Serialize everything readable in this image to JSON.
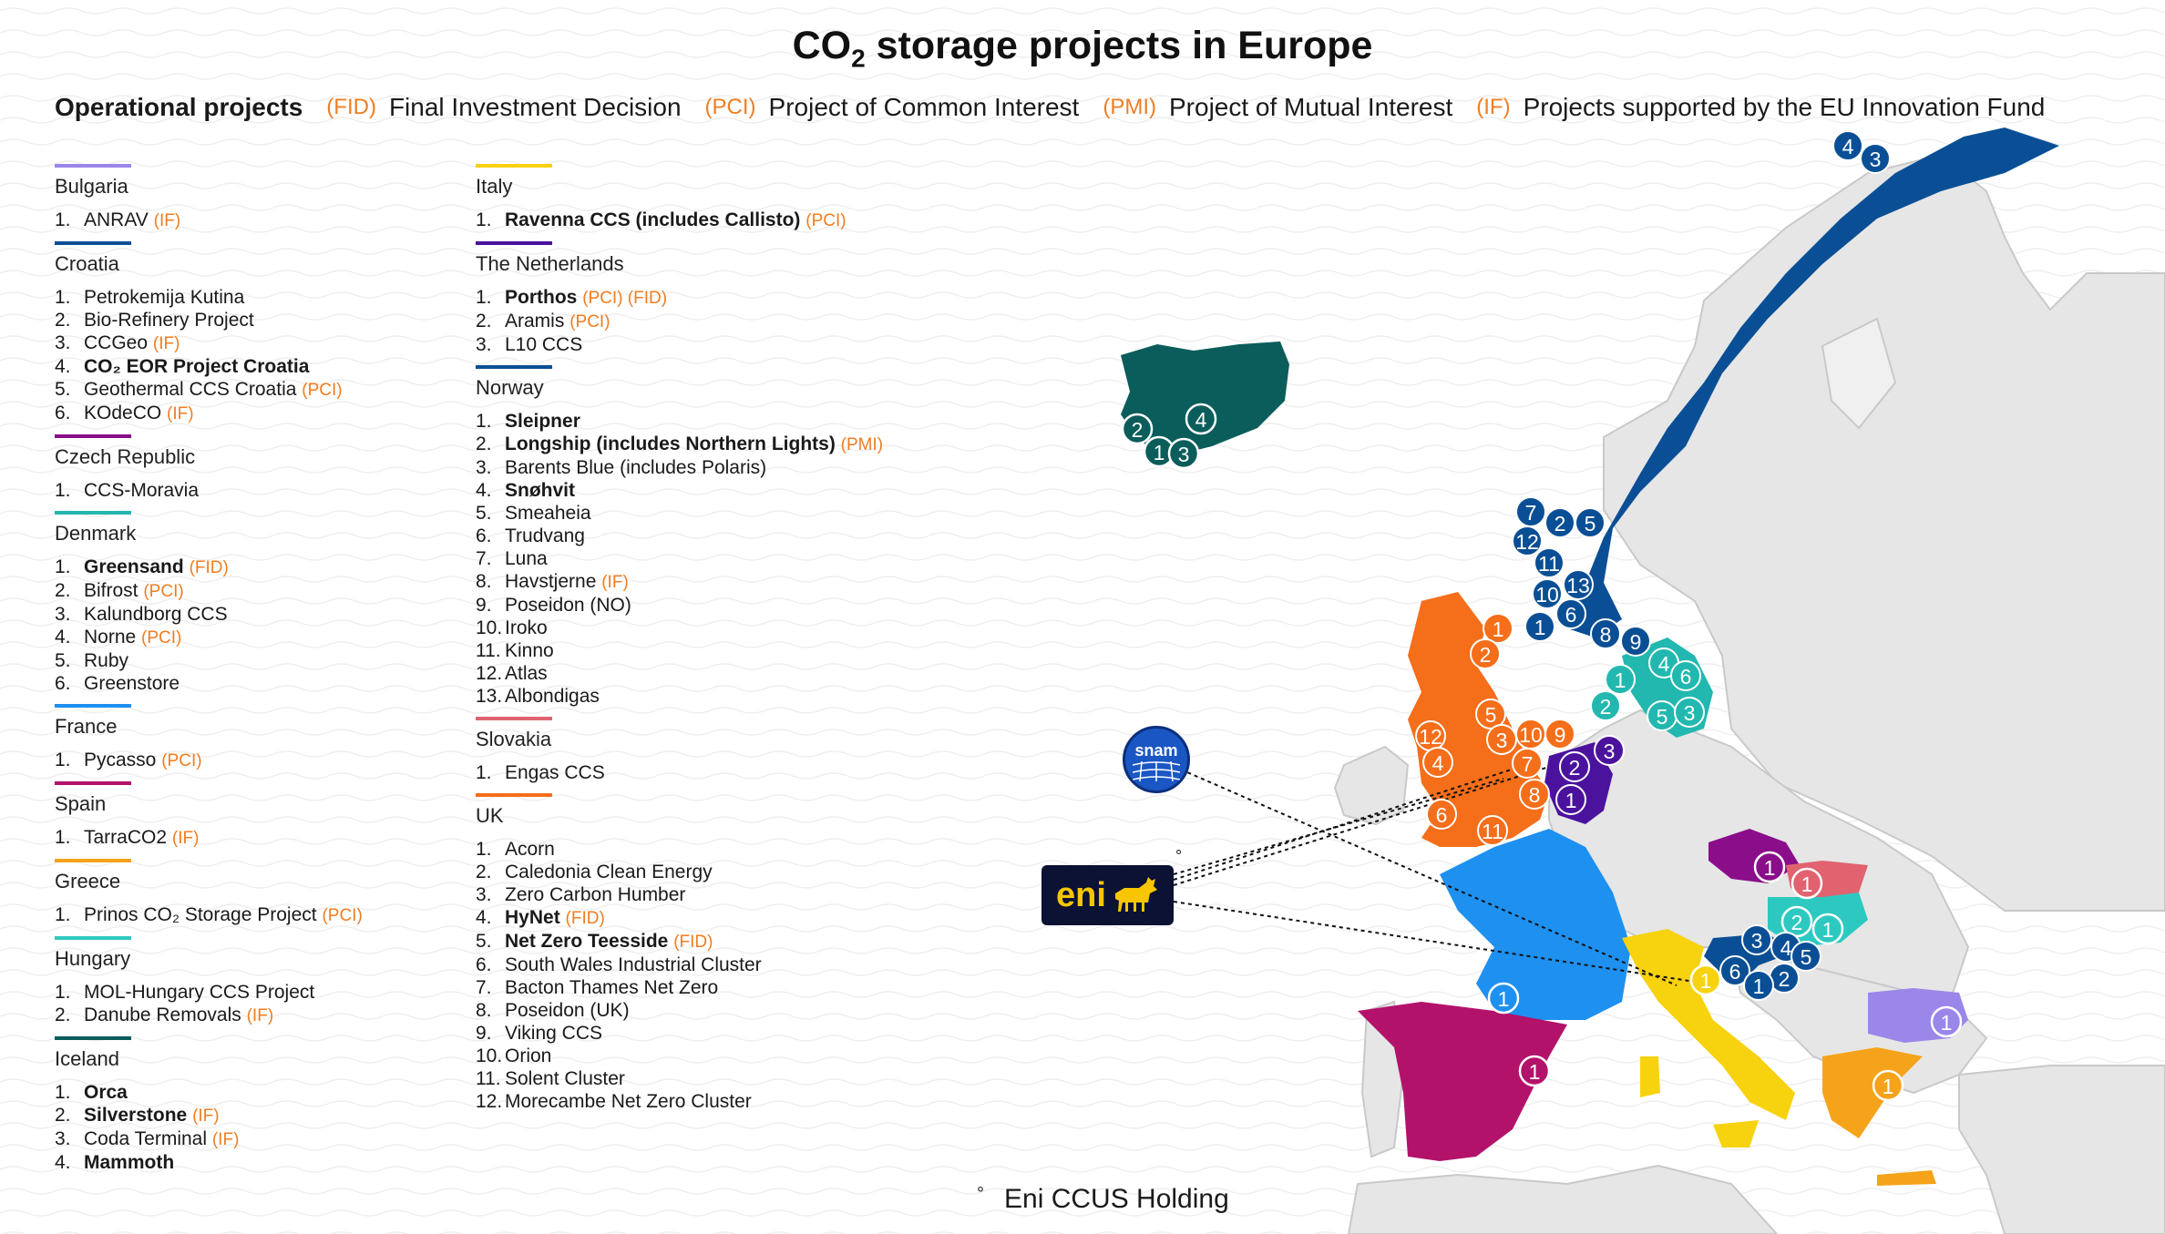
{
  "title": {
    "main": "CO",
    "sub": "2",
    "rest": " storage projects in Europe"
  },
  "legend": {
    "operational": "Operational projects",
    "fid_tag": "(FID)",
    "fid_desc": "Final Investment Decision",
    "pci_tag": "(PCI)",
    "pci_desc": "Project of Common Interest",
    "pmi_tag": "(PMI)",
    "pmi_desc": "Project of Mutual Interest",
    "if_tag": "(IF)",
    "if_desc": "Projects supported by the EU Innovation Fund"
  },
  "colors": {
    "bulgaria": "#9b87ea",
    "croatia": "#0a4f95",
    "czech": "#8a0e8a",
    "denmark": "#22b8b0",
    "france": "#1e90f0",
    "spain": "#b3126b",
    "greece": "#f5a31a",
    "hungary": "#2dc9c1",
    "iceland": "#0a5d5a",
    "italy": "#f7d20f",
    "netherlands": "#4b139d",
    "norway": "#0a4f95",
    "slovakia": "#e0636f",
    "uk": "#f56e1a",
    "tag": "#f07d21"
  },
  "sections": {
    "bulgaria": {
      "name": "Bulgaria",
      "items": [
        {
          "num": "1.",
          "name": "ANRAV",
          "tags": "(IF)",
          "bold": false
        }
      ]
    },
    "croatia": {
      "name": "Croatia",
      "items": [
        {
          "num": "1.",
          "name": "Petrokemija Kutina",
          "tags": "",
          "bold": false
        },
        {
          "num": "2.",
          "name": "Bio-Refinery Project",
          "tags": "",
          "bold": false
        },
        {
          "num": "3.",
          "name": "CCGeo",
          "tags": "(IF)",
          "bold": false
        },
        {
          "num": "4.",
          "name": "CO₂ EOR Project Croatia",
          "tags": "",
          "bold": true
        },
        {
          "num": "5.",
          "name": "Geothermal CCS Croatia",
          "tags": "(PCI)",
          "bold": false
        },
        {
          "num": "6.",
          "name": "KOdeCO",
          "tags": "(IF)",
          "bold": false
        }
      ]
    },
    "czech": {
      "name": "Czech Republic",
      "items": [
        {
          "num": "1.",
          "name": "CCS-Moravia",
          "tags": "",
          "bold": false
        }
      ]
    },
    "denmark": {
      "name": "Denmark",
      "items": [
        {
          "num": "1.",
          "name": "Greensand",
          "tags": "(FID)",
          "bold": true
        },
        {
          "num": "2.",
          "name": "Bifrost",
          "tags": "(PCI)",
          "bold": false
        },
        {
          "num": "3.",
          "name": "Kalundborg CCS",
          "tags": "",
          "bold": false
        },
        {
          "num": "4.",
          "name": "Norne",
          "tags": "(PCI)",
          "bold": false
        },
        {
          "num": "5.",
          "name": "Ruby",
          "tags": "",
          "bold": false
        },
        {
          "num": "6.",
          "name": "Greenstore",
          "tags": "",
          "bold": false
        }
      ]
    },
    "france": {
      "name": "France",
      "items": [
        {
          "num": "1.",
          "name": "Pycasso",
          "tags": "(PCI)",
          "bold": false
        }
      ]
    },
    "spain": {
      "name": "Spain",
      "items": [
        {
          "num": "1.",
          "name": "TarraCO2",
          "tags": "(IF)",
          "bold": false
        }
      ]
    },
    "greece": {
      "name": "Greece",
      "items": [
        {
          "num": "1.",
          "name": "Prinos CO₂ Storage Project",
          "tags": "(PCI)",
          "bold": false
        }
      ]
    },
    "hungary": {
      "name": "Hungary",
      "items": [
        {
          "num": "1.",
          "name": "MOL-Hungary CCS Project",
          "tags": "",
          "bold": false
        },
        {
          "num": "2.",
          "name": "Danube Removals",
          "tags": "(IF)",
          "bold": false
        }
      ]
    },
    "iceland": {
      "name": "Iceland",
      "items": [
        {
          "num": "1.",
          "name": "Orca",
          "tags": "",
          "bold": true
        },
        {
          "num": "2.",
          "name": "Silverstone",
          "tags": "(IF)",
          "bold": true
        },
        {
          "num": "3.",
          "name": "Coda Terminal",
          "tags": "(IF)",
          "bold": false
        },
        {
          "num": "4.",
          "name": "Mammoth",
          "tags": "",
          "bold": true
        }
      ]
    },
    "italy": {
      "name": "Italy",
      "items": [
        {
          "num": "1.",
          "name": "Ravenna CCS (includes Callisto)",
          "tags": "(PCI)",
          "bold": true
        }
      ]
    },
    "netherlands": {
      "name": "The Netherlands",
      "items": [
        {
          "num": "1.",
          "name": "Porthos",
          "tags": "(PCI) (FID)",
          "bold": true
        },
        {
          "num": "2.",
          "name": "Aramis",
          "tags": "(PCI)",
          "bold": false
        },
        {
          "num": "3.",
          "name": "L10 CCS",
          "tags": "",
          "bold": false
        }
      ]
    },
    "norway": {
      "name": "Norway",
      "items": [
        {
          "num": "1.",
          "name": "Sleipner",
          "tags": "",
          "bold": true
        },
        {
          "num": "2.",
          "name": "Longship (includes Northern Lights)",
          "tags": "(PMI)",
          "bold": true
        },
        {
          "num": "3.",
          "name": "Barents Blue (includes Polaris)",
          "tags": "",
          "bold": false
        },
        {
          "num": "4.",
          "name": "Snøhvit",
          "tags": "",
          "bold": true
        },
        {
          "num": "5.",
          "name": "Smeaheia",
          "tags": "",
          "bold": false
        },
        {
          "num": "6.",
          "name": "Trudvang",
          "tags": "",
          "bold": false
        },
        {
          "num": "7.",
          "name": "Luna",
          "tags": "",
          "bold": false
        },
        {
          "num": "8.",
          "name": "Havstjerne",
          "tags": "(IF)",
          "bold": false
        },
        {
          "num": "9.",
          "name": "Poseidon (NO)",
          "tags": "",
          "bold": false
        },
        {
          "num": "10.",
          "name": "Iroko",
          "tags": "",
          "bold": false
        },
        {
          "num": "11.",
          "name": "Kinno",
          "tags": "",
          "bold": false
        },
        {
          "num": "12.",
          "name": "Atlas",
          "tags": "",
          "bold": false
        },
        {
          "num": "13.",
          "name": "Albondigas",
          "tags": "",
          "bold": false
        }
      ]
    },
    "slovakia": {
      "name": "Slovakia",
      "items": [
        {
          "num": "1.",
          "name": "Engas CCS",
          "tags": "",
          "bold": false
        }
      ]
    },
    "uk": {
      "name": "UK",
      "items": [
        {
          "num": "1.",
          "name": "Acorn",
          "tags": "",
          "bold": false
        },
        {
          "num": "2.",
          "name": "Caledonia Clean Energy",
          "tags": "",
          "bold": false
        },
        {
          "num": "3.",
          "name": "Zero Carbon Humber",
          "tags": "",
          "bold": false
        },
        {
          "num": "4.",
          "name": "HyNet",
          "tags": "(FID)",
          "bold": true
        },
        {
          "num": "5.",
          "name": "Net Zero Teesside",
          "tags": "(FID)",
          "bold": true
        },
        {
          "num": "6.",
          "name": "South Wales Industrial Cluster",
          "tags": "",
          "bold": false
        },
        {
          "num": "7.",
          "name": "Bacton Thames Net Zero",
          "tags": "",
          "bold": false
        },
        {
          "num": "8.",
          "name": "Poseidon (UK)",
          "tags": "",
          "bold": false
        },
        {
          "num": "9.",
          "name": "Viking CCS",
          "tags": "",
          "bold": false
        },
        {
          "num": "10.",
          "name": "Orion",
          "tags": "",
          "bold": false
        },
        {
          "num": "11.",
          "name": "Solent Cluster",
          "tags": "",
          "bold": false
        },
        {
          "num": "12.",
          "name": "Morecambe Net Zero Cluster",
          "tags": "",
          "bold": false
        }
      ]
    }
  },
  "logos": {
    "eni": "eni",
    "snam": "snam",
    "eni_mark": "°"
  },
  "footnote": {
    "mark": "°",
    "text": "Eni CCUS Holding"
  },
  "map_markers": [
    {
      "country": "norway",
      "n": "4"
    },
    {
      "country": "norway",
      "n": "3"
    },
    {
      "country": "norway",
      "n": "7"
    },
    {
      "country": "norway",
      "n": "2"
    },
    {
      "country": "norway",
      "n": "5"
    },
    {
      "country": "norway",
      "n": "12"
    },
    {
      "country": "norway",
      "n": "11"
    },
    {
      "country": "norway",
      "n": "13"
    },
    {
      "country": "norway",
      "n": "10"
    },
    {
      "country": "norway",
      "n": "6"
    },
    {
      "country": "norway",
      "n": "1"
    },
    {
      "country": "norway",
      "n": "8"
    },
    {
      "country": "norway",
      "n": "9"
    },
    {
      "country": "iceland",
      "n": "4"
    },
    {
      "country": "iceland",
      "n": "2"
    },
    {
      "country": "iceland",
      "n": "1"
    },
    {
      "country": "iceland",
      "n": "3"
    },
    {
      "country": "uk",
      "n": "1"
    },
    {
      "country": "uk",
      "n": "2"
    },
    {
      "country": "uk",
      "n": "5"
    },
    {
      "country": "uk",
      "n": "12"
    },
    {
      "country": "uk",
      "n": "3"
    },
    {
      "country": "uk",
      "n": "10"
    },
    {
      "country": "uk",
      "n": "9"
    },
    {
      "country": "uk",
      "n": "4"
    },
    {
      "country": "uk",
      "n": "7"
    },
    {
      "country": "uk",
      "n": "8"
    },
    {
      "country": "uk",
      "n": "6"
    },
    {
      "country": "uk",
      "n": "11"
    },
    {
      "country": "denmark",
      "n": "1"
    },
    {
      "country": "denmark",
      "n": "4"
    },
    {
      "country": "denmark",
      "n": "6"
    },
    {
      "country": "denmark",
      "n": "2"
    },
    {
      "country": "denmark",
      "n": "5"
    },
    {
      "country": "denmark",
      "n": "3"
    },
    {
      "country": "netherlands",
      "n": "2"
    },
    {
      "country": "netherlands",
      "n": "3"
    },
    {
      "country": "netherlands",
      "n": "1"
    },
    {
      "country": "czech",
      "n": "1"
    },
    {
      "country": "slovakia",
      "n": "1"
    },
    {
      "country": "hungary",
      "n": "2"
    },
    {
      "country": "hungary",
      "n": "1"
    },
    {
      "country": "croatia",
      "n": "3"
    },
    {
      "country": "croatia",
      "n": "4"
    },
    {
      "country": "croatia",
      "n": "5"
    },
    {
      "country": "croatia",
      "n": "6"
    },
    {
      "country": "croatia",
      "n": "2"
    },
    {
      "country": "croatia",
      "n": "1"
    },
    {
      "country": "france",
      "n": "1"
    },
    {
      "country": "italy",
      "n": "1"
    },
    {
      "country": "spain",
      "n": "1"
    },
    {
      "country": "bulgaria",
      "n": "1"
    },
    {
      "country": "greece",
      "n": "1"
    }
  ]
}
